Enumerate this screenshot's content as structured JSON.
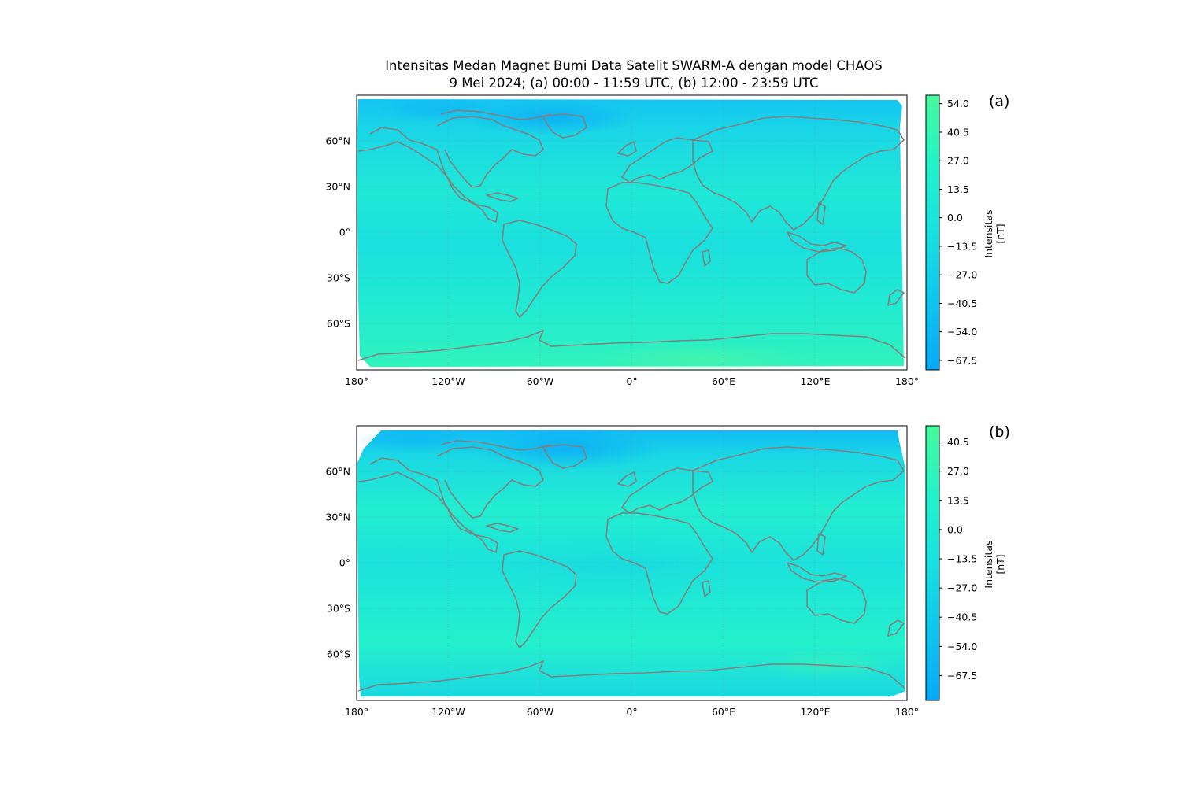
{
  "figure": {
    "title_line1": "Intensitas Medan Magnet Bumi Data Satelit SWARM-A dengan model CHAOS",
    "title_line2": "9 Mei 2024; (a) 00:00 - 11:59 UTC, (b) 12:00 - 23:59 UTC"
  },
  "axes": {
    "lon_ticks": [
      "180°",
      "120°W",
      "60°W",
      "0°",
      "60°E",
      "120°E",
      "180°"
    ],
    "lat_ticks": [
      "60°N",
      "30°N",
      "0°",
      "30°S",
      "60°S"
    ],
    "lon_values": [
      -180,
      -120,
      -60,
      0,
      60,
      120,
      180
    ],
    "lat_values": [
      60,
      30,
      0,
      -30,
      -60
    ]
  },
  "colors": {
    "coastline": "#808080",
    "field_mid": "#1ee8d6",
    "field_low": "#10b8f5",
    "field_high": "#3df5b0",
    "cbar_bottom": "#06a8f8",
    "cbar_top": "#48f89c"
  },
  "panels": [
    {
      "label": "(a)",
      "colorbar": {
        "label_line1": "Intensitas",
        "label_line2": "[nT]",
        "ticks": [
          "54.0",
          "40.5",
          "27.0",
          "13.5",
          "0.0",
          "−13.5",
          "−27.0",
          "−40.5",
          "−54.0",
          "−67.5"
        ],
        "tick_values": [
          54.0,
          40.5,
          27.0,
          13.5,
          0.0,
          -13.5,
          -27.0,
          -40.5,
          -54.0,
          -67.5
        ],
        "vmin": -72,
        "vmax": 58
      }
    },
    {
      "label": "(b)",
      "colorbar": {
        "label_line1": "Intensitas",
        "label_line2": "[nT]",
        "ticks": [
          "40.5",
          "27.0",
          "13.5",
          "0.0",
          "−13.5",
          "−27.0",
          "−40.5",
          "−54.0",
          "−67.5"
        ],
        "tick_values": [
          40.5,
          27.0,
          13.5,
          0.0,
          -13.5,
          -27.0,
          -40.5,
          -54.0,
          -67.5
        ],
        "vmin": -79,
        "vmax": 48
      }
    }
  ]
}
